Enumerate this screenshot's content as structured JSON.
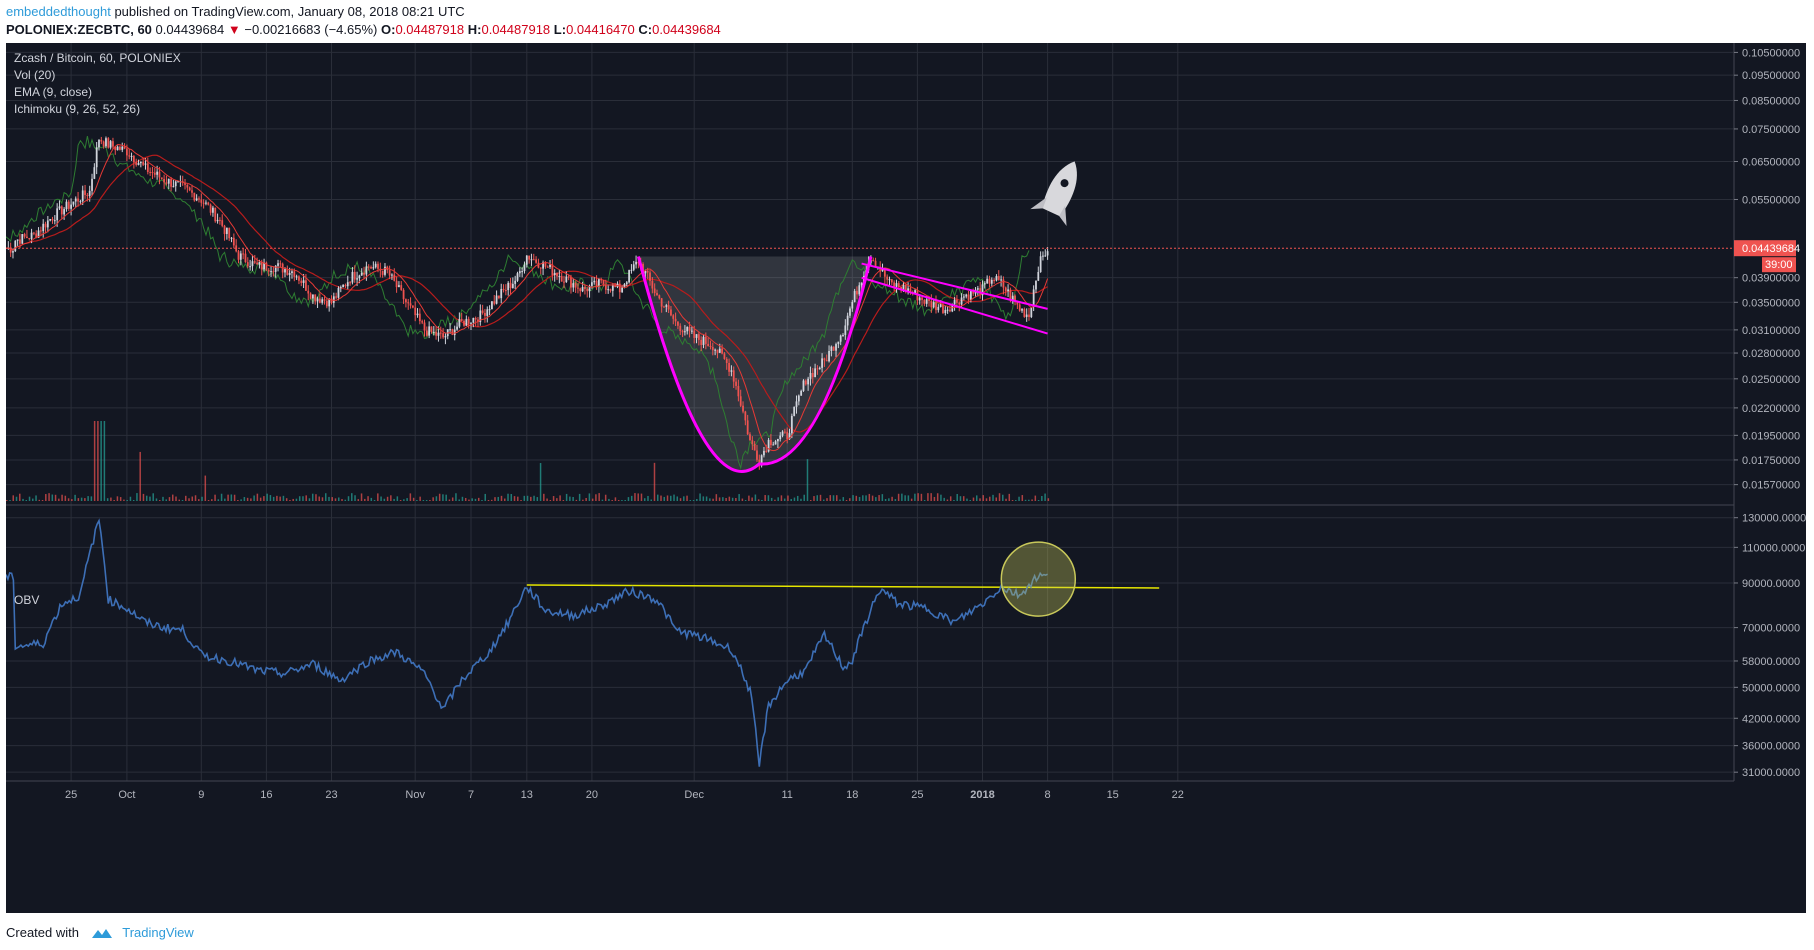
{
  "header": {
    "author": "embeddedthought",
    "published_text": "published on TradingView.com, January 08, 2018 08:21 UTC",
    "symbol": "POLONIEX:ZECBTC, 60",
    "last": "0.04439684",
    "change_arrow": "▼",
    "change": "−0.00216683 (−4.65%)",
    "o_label": "O:",
    "o_value": "0.04487918",
    "h_label": "H:",
    "h_value": "0.04487918",
    "l_label": "L:",
    "l_value": "0.04416470",
    "c_label": "C:",
    "c_value": "0.04439684"
  },
  "legend": {
    "title": "Zcash / Bitcoin, 60, POLONIEX",
    "vol": "Vol (20)",
    "ema": "EMA (9, close)",
    "ichimoku": "Ichimoku (9, 26, 52, 26)",
    "obv": "OBV"
  },
  "price_badge": {
    "value": "0.04439684",
    "countdown": "39:00"
  },
  "footer": {
    "created_with": "Created with",
    "brand": "TradingView"
  },
  "colors": {
    "background": "#131722",
    "grid": "#2a2e39",
    "up": "#d1d4dc",
    "down": "#ef5350",
    "tenkan": "#e53935",
    "kijun": "#b71c1c",
    "chikou": "#2e7d32",
    "cup": "#ff00ff",
    "obv": "#3d6fb6",
    "obv_trend": "#e6e600",
    "highlight": "#c8c85a"
  },
  "chart_data": [
    {
      "type": "line",
      "name_shown": "Zcash / Bitcoin, 60, POLONIEX",
      "x_axis": {
        "ticks": [
          "25",
          "Oct",
          "9",
          "16",
          "23",
          "Nov",
          "7",
          "13",
          "20",
          "Dec",
          "11",
          "18",
          "25",
          "2018",
          "8",
          "15",
          "22"
        ]
      },
      "y_axis": {
        "scale": "log",
        "ticks": [
          "0.10500000",
          "0.09500000",
          "0.08500000",
          "0.07500000",
          "0.06500000",
          "0.05500000",
          "0.03900000",
          "0.03500000",
          "0.03100000",
          "0.02800000",
          "0.02500000",
          "0.02200000",
          "0.01950000",
          "0.01750000",
          "0.01570000"
        ],
        "tick_values": [
          0.105,
          0.095,
          0.085,
          0.075,
          0.065,
          0.055,
          0.039,
          0.035,
          0.031,
          0.028,
          0.025,
          0.022,
          0.0195,
          0.0175,
          0.0157
        ],
        "ylim": [
          0.015,
          0.108
        ]
      },
      "series": [
        {
          "name": "ZECBTC",
          "points": [
            [
              "Sep 19",
              0.046
            ],
            [
              "Sep 21",
              0.047
            ],
            [
              "Sep 23",
              0.051
            ],
            [
              "Sep 25",
              0.054
            ],
            [
              "Sep 27",
              0.057
            ],
            [
              "Sep 28",
              0.072
            ],
            [
              "Sep 29",
              0.07
            ],
            [
              "Oct 1",
              0.068
            ],
            [
              "Oct 3",
              0.063
            ],
            [
              "Oct 5",
              0.06
            ],
            [
              "Oct 7",
              0.058
            ],
            [
              "Oct 9",
              0.055
            ],
            [
              "Oct 11",
              0.05
            ],
            [
              "Oct 13",
              0.043
            ],
            [
              "Oct 15",
              0.041
            ],
            [
              "Oct 17",
              0.041
            ],
            [
              "Oct 19",
              0.04
            ],
            [
              "Oct 21",
              0.036
            ],
            [
              "Oct 23",
              0.035
            ],
            [
              "Oct 25",
              0.039
            ],
            [
              "Oct 27",
              0.041
            ],
            [
              "Oct 29",
              0.04
            ],
            [
              "Oct 31",
              0.035
            ],
            [
              "Nov 2",
              0.031
            ],
            [
              "Nov 4",
              0.03
            ],
            [
              "Nov 6",
              0.032
            ],
            [
              "Nov 8",
              0.033
            ],
            [
              "Nov 10",
              0.036
            ],
            [
              "Nov 12",
              0.039
            ],
            [
              "Nov 13",
              0.043
            ],
            [
              "Nov 15",
              0.041
            ],
            [
              "Nov 17",
              0.039
            ],
            [
              "Nov 19",
              0.037
            ],
            [
              "Nov 21",
              0.038
            ],
            [
              "Nov 23",
              0.037
            ],
            [
              "Nov 25",
              0.042
            ],
            [
              "Nov 27",
              0.036
            ],
            [
              "Nov 29",
              0.032
            ],
            [
              "Dec 1",
              0.03
            ],
            [
              "Dec 3",
              0.029
            ],
            [
              "Dec 5",
              0.026
            ],
            [
              "Dec 7",
              0.019
            ],
            [
              "Dec 8",
              0.0175
            ],
            [
              "Dec 9",
              0.019
            ],
            [
              "Dec 11",
              0.0195
            ],
            [
              "Dec 13",
              0.025
            ],
            [
              "Dec 15",
              0.027
            ],
            [
              "Dec 17",
              0.031
            ],
            [
              "Dec 19",
              0.039
            ],
            [
              "Dec 20",
              0.043
            ],
            [
              "Dec 22",
              0.038
            ],
            [
              "Dec 24",
              0.037
            ],
            [
              "Dec 26",
              0.035
            ],
            [
              "Dec 28",
              0.034
            ],
            [
              "Dec 30",
              0.036
            ],
            [
              "Jan 1",
              0.037
            ],
            [
              "Jan 2",
              0.039
            ],
            [
              "Jan 3",
              0.038
            ],
            [
              "Jan 5",
              0.034
            ],
            [
              "Jan 6",
              0.033
            ],
            [
              "Jan 7",
              0.041
            ],
            [
              "Jan 8",
              0.0444
            ]
          ]
        }
      ],
      "annotations": [
        "cup-and-handle",
        "falling wedge",
        "rocket"
      ]
    },
    {
      "type": "line",
      "name_shown": "OBV",
      "y_axis": {
        "ticks": [
          "130000.0000",
          "110000.0000",
          "90000.0000",
          "70000.0000",
          "58000.0000",
          "50000.0000",
          "42000.0000",
          "36000.0000",
          "31000.0000"
        ],
        "tick_values": [
          130000,
          110000,
          90000,
          70000,
          58000,
          50000,
          42000,
          36000,
          31000
        ]
      },
      "series": [
        {
          "name": "OBV",
          "points": [
            [
              "Sep 19",
              63000
            ],
            [
              "Sep 22",
              64000
            ],
            [
              "Sep 24",
              80000
            ],
            [
              "Sep 26",
              84000
            ],
            [
              "Sep 28",
              128000
            ],
            [
              "Sep 29",
              82000
            ],
            [
              "Oct 1",
              78000
            ],
            [
              "Oct 3",
              72000
            ],
            [
              "Oct 5",
              70000
            ],
            [
              "Oct 7",
              69000
            ],
            [
              "Oct 9",
              60000
            ],
            [
              "Oct 12",
              58000
            ],
            [
              "Oct 15",
              55000
            ],
            [
              "Oct 18",
              54000
            ],
            [
              "Oct 21",
              57000
            ],
            [
              "Oct 24",
              52000
            ],
            [
              "Oct 27",
              58000
            ],
            [
              "Oct 30",
              61000
            ],
            [
              "Nov 2",
              54000
            ],
            [
              "Nov 4",
              44000
            ],
            [
              "Nov 6",
              52000
            ],
            [
              "Nov 9",
              61000
            ],
            [
              "Nov 11",
              72000
            ],
            [
              "Nov 13",
              88000
            ],
            [
              "Nov 15",
              77000
            ],
            [
              "Nov 18",
              75000
            ],
            [
              "Nov 21",
              79000
            ],
            [
              "Nov 24",
              86000
            ],
            [
              "Nov 27",
              82000
            ],
            [
              "Nov 29",
              69000
            ],
            [
              "Dec 2",
              66000
            ],
            [
              "Dec 5",
              62000
            ],
            [
              "Dec 7",
              49000
            ],
            [
              "Dec 8",
              32000
            ],
            [
              "Dec 9",
              45000
            ],
            [
              "Dec 11",
              52000
            ],
            [
              "Dec 13",
              55000
            ],
            [
              "Dec 15",
              67000
            ],
            [
              "Dec 17",
              56000
            ],
            [
              "Dec 18",
              58000
            ],
            [
              "Dec 21",
              87000
            ],
            [
              "Dec 23",
              80000
            ],
            [
              "Dec 26",
              78000
            ],
            [
              "Dec 29",
              72000
            ],
            [
              "Jan 1",
              80000
            ],
            [
              "Jan 3",
              88000
            ],
            [
              "Jan 5",
              84000
            ],
            [
              "Jan 7",
              94000
            ],
            [
              "Jan 8",
              93000
            ]
          ]
        }
      ],
      "annotations": [
        "horizontal trend line near 90000",
        "circled breakout"
      ]
    }
  ]
}
